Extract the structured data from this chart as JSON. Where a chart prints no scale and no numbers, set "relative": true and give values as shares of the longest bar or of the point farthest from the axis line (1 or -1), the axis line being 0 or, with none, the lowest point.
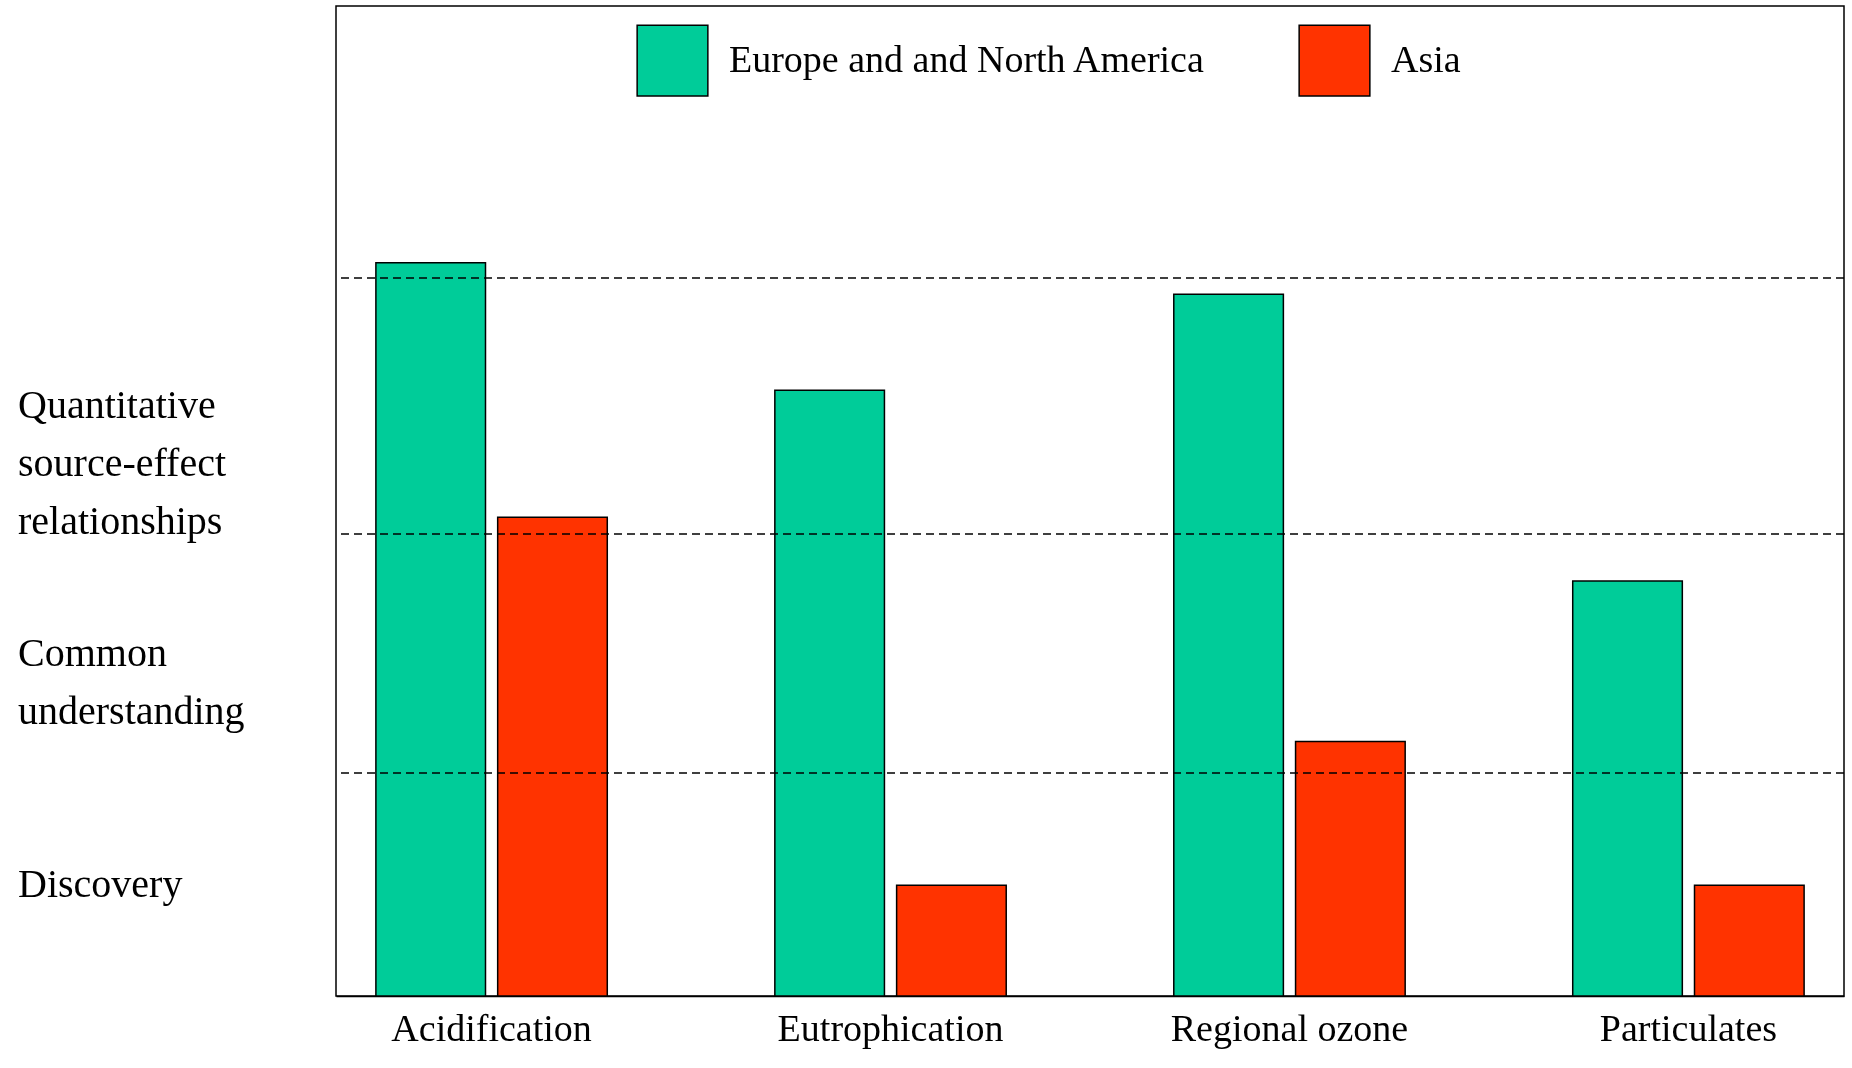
{
  "chart_data": {
    "type": "bar",
    "relative": true,
    "categories": [
      "Acidification",
      "Eutrophication",
      "Regional ozone",
      "Particulates"
    ],
    "series": [
      {
        "name": "Europe and and North America",
        "color": "#00cc99",
        "values": [
          1,
          0.826,
          0.957,
          0.566
        ]
      },
      {
        "name": "Asia",
        "color": "#ff3300",
        "values": [
          0.653,
          0.151,
          0.347,
          0.151
        ]
      }
    ],
    "ref_lines": [
      {
        "axis": "y",
        "value": 0.979,
        "line_style": "dashed",
        "color": "#000000"
      },
      {
        "axis": "y",
        "value": 0.63,
        "line_style": "dashed",
        "color": "#000000"
      },
      {
        "axis": "y",
        "value": 0.304,
        "line_style": "dashed",
        "color": "#000000"
      }
    ],
    "annotations": [
      "Quantitative source-effect relationships",
      "Common understanding",
      "Discovery"
    ],
    "legend": "top",
    "tick_labels": "x",
    "grid": false
  }
}
